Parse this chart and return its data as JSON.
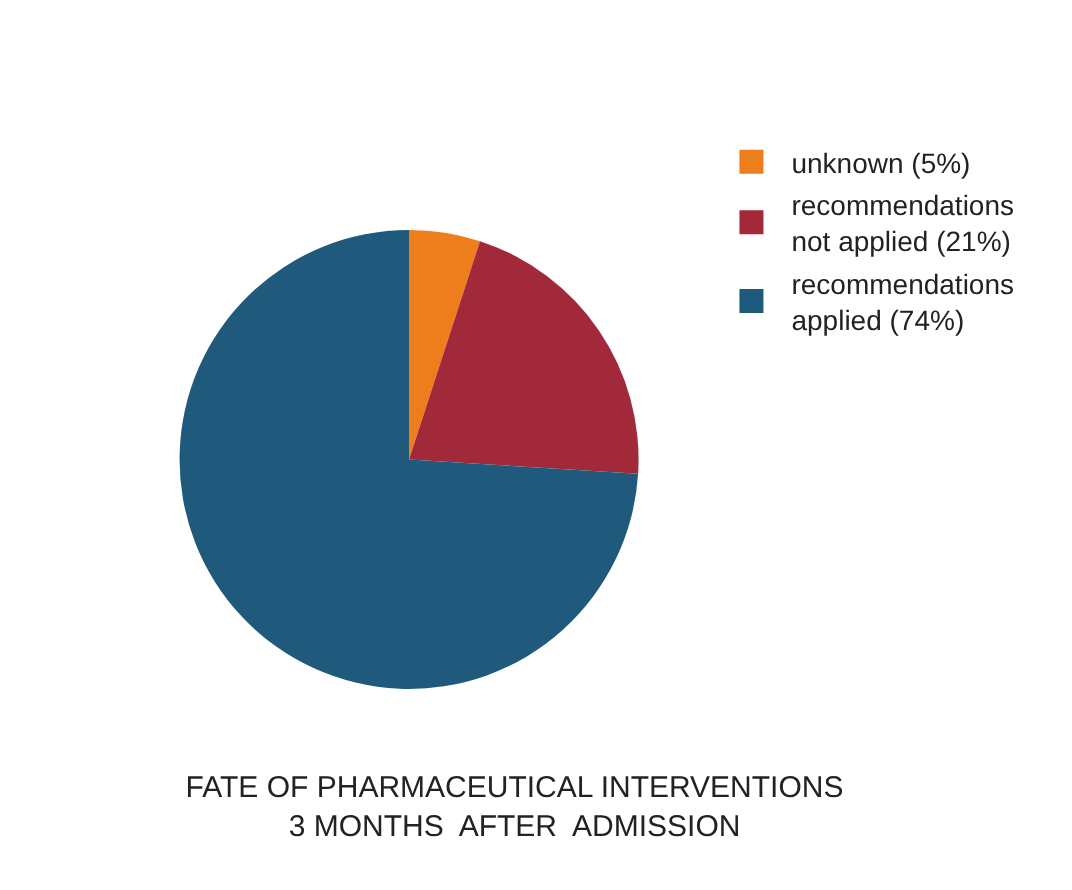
{
  "chart_data": {
    "type": "pie",
    "title": "FATE OF PHARMACEUTICAL INTERVENTIONS\n3 MONTHS  AFTER  ADMISSION",
    "categories": [
      "unknown (5%)",
      "recommendations not applied (21%)",
      "recommendations applied (74%)"
    ],
    "values": [
      5,
      21,
      74
    ],
    "colors": [
      "#ee7d1b",
      "#a2293a",
      "#1f5a7d"
    ],
    "legend": "right"
  }
}
